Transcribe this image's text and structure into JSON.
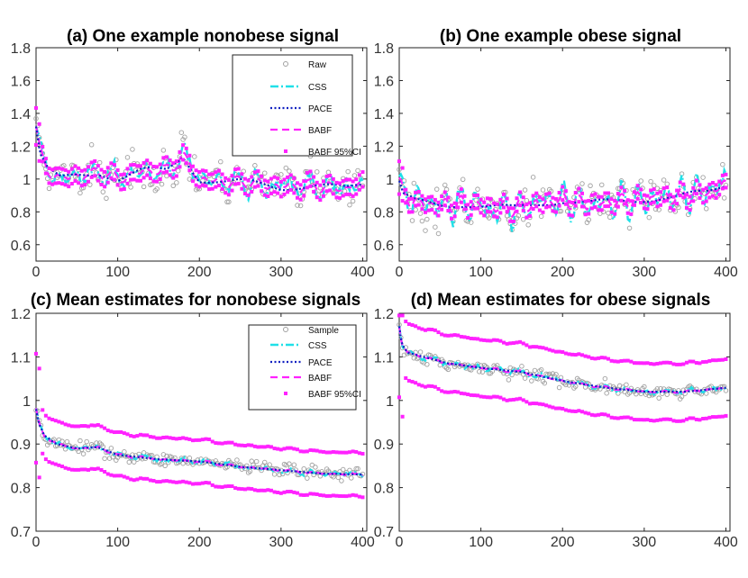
{
  "colors": {
    "raw": "#a0a0a0",
    "css": "#20e0e8",
    "pace": "#1020c0",
    "babf": "#ff22ff",
    "ci": "#ff22ff",
    "axis": "#222222"
  },
  "chart_data": [
    {
      "id": "a",
      "type": "line",
      "title": "(a) One example nonobese signal",
      "xlim": [
        0,
        405
      ],
      "ylim": [
        0.5,
        1.8
      ],
      "xticks": [
        0,
        100,
        200,
        300,
        400
      ],
      "xtick_labels": [
        "0",
        "100",
        "200",
        "300",
        "400"
      ],
      "yticks": [
        0.6,
        0.8,
        1.0,
        1.2,
        1.4,
        1.6,
        1.8
      ],
      "ytick_labels": [
        "0.6",
        "0.8",
        "1",
        "1.2",
        "1.4",
        "1.6",
        "1.8"
      ],
      "legend": {
        "position": "top-right",
        "entries": [
          {
            "key": "raw",
            "label": "Raw"
          },
          {
            "key": "css",
            "label": "CSS"
          },
          {
            "key": "pace",
            "label": "PACE"
          },
          {
            "key": "babf",
            "label": "BABF"
          },
          {
            "key": "ci",
            "label": "BABF 95%CI"
          }
        ]
      },
      "trend": [
        [
          0,
          1.32
        ],
        [
          5,
          1.15
        ],
        [
          15,
          1.05
        ],
        [
          30,
          1.0
        ],
        [
          50,
          1.02
        ],
        [
          80,
          1.04
        ],
        [
          100,
          1.0
        ],
        [
          130,
          1.05
        ],
        [
          160,
          1.05
        ],
        [
          180,
          1.14
        ],
        [
          200,
          1.0
        ],
        [
          230,
          0.98
        ],
        [
          260,
          0.98
        ],
        [
          300,
          0.95
        ],
        [
          340,
          0.96
        ],
        [
          380,
          0.94
        ],
        [
          405,
          0.98
        ]
      ],
      "series": {
        "raw": {
          "amp": 0.07,
          "noise": 0.09,
          "period": 11
        },
        "css": {
          "amp": 0.07,
          "noise": 0.03,
          "period": 11
        },
        "pace": {
          "amp": 0.02,
          "noise": 0.0,
          "period": 11
        },
        "babf": {
          "amp": 0.04,
          "noise": 0.005,
          "period": 11
        },
        "ci_offset": 0.045
      }
    },
    {
      "id": "b",
      "type": "line",
      "title": "(b) One example obese signal",
      "xlim": [
        0,
        405
      ],
      "ylim": [
        0.5,
        1.8
      ],
      "xticks": [
        0,
        100,
        200,
        300,
        400
      ],
      "xtick_labels": [
        "0",
        "100",
        "200",
        "300",
        "400"
      ],
      "yticks": [
        0.6,
        0.8,
        1.0,
        1.2,
        1.4,
        1.6,
        1.8
      ],
      "ytick_labels": [
        "0.6",
        "0.8",
        "1",
        "1.2",
        "1.4",
        "1.6",
        "1.8"
      ],
      "trend": [
        [
          0,
          0.98
        ],
        [
          5,
          0.9
        ],
        [
          20,
          0.86
        ],
        [
          50,
          0.84
        ],
        [
          80,
          0.85
        ],
        [
          110,
          0.83
        ],
        [
          140,
          0.82
        ],
        [
          170,
          0.85
        ],
        [
          200,
          0.87
        ],
        [
          230,
          0.85
        ],
        [
          260,
          0.86
        ],
        [
          300,
          0.88
        ],
        [
          340,
          0.89
        ],
        [
          380,
          0.92
        ],
        [
          405,
          0.98
        ]
      ],
      "series": {
        "raw": {
          "amp": 0.08,
          "noise": 0.1,
          "period": 9
        },
        "css": {
          "amp": 0.1,
          "noise": 0.04,
          "period": 9
        },
        "pace": {
          "amp": 0.02,
          "noise": 0.0,
          "period": 9
        },
        "babf": {
          "amp": 0.05,
          "noise": 0.005,
          "period": 9
        },
        "ci_offset": 0.04
      }
    },
    {
      "id": "c",
      "type": "line",
      "title": "(c) Mean estimates for nonobese signals",
      "xlim": [
        0,
        405
      ],
      "ylim": [
        0.7,
        1.2
      ],
      "xticks": [
        0,
        100,
        200,
        300,
        400
      ],
      "xtick_labels": [
        "0",
        "100",
        "200",
        "300",
        "400"
      ],
      "yticks": [
        0.7,
        0.8,
        0.9,
        1.0,
        1.1,
        1.2
      ],
      "ytick_labels": [
        "0.7",
        "0.8",
        "0.9",
        "1",
        "1.1",
        "1.2"
      ],
      "legend": {
        "position": "top-right",
        "entries": [
          {
            "key": "raw",
            "label": "Sample"
          },
          {
            "key": "css",
            "label": "CSS"
          },
          {
            "key": "pace",
            "label": "PACE"
          },
          {
            "key": "babf",
            "label": "BABF"
          },
          {
            "key": "ci",
            "label": "BABF 95%CI"
          }
        ]
      },
      "trend": [
        [
          0,
          0.98
        ],
        [
          3,
          0.95
        ],
        [
          10,
          0.92
        ],
        [
          25,
          0.9
        ],
        [
          50,
          0.89
        ],
        [
          75,
          0.893
        ],
        [
          100,
          0.875
        ],
        [
          150,
          0.865
        ],
        [
          200,
          0.86
        ],
        [
          250,
          0.848
        ],
        [
          300,
          0.84
        ],
        [
          350,
          0.832
        ],
        [
          405,
          0.83
        ]
      ],
      "series": {
        "raw": {
          "amp": 0.005,
          "noise": 0.012,
          "period": 13
        },
        "css": {
          "amp": 0.006,
          "noise": 0.004,
          "period": 13
        },
        "pace": {
          "amp": 0.0,
          "noise": 0.0,
          "period": 13
        },
        "babf": {
          "amp": 0.003,
          "noise": 0.001,
          "period": 13
        },
        "ci_offset": 0.05
      }
    },
    {
      "id": "d",
      "type": "line",
      "title": "(d) Mean estimates for obese signals",
      "xlim": [
        0,
        405
      ],
      "ylim": [
        0.7,
        1.2
      ],
      "xticks": [
        0,
        100,
        200,
        300,
        400
      ],
      "xtick_labels": [
        "0",
        "100",
        "200",
        "300",
        "400"
      ],
      "yticks": [
        0.7,
        0.8,
        0.9,
        1.0,
        1.1,
        1.2
      ],
      "ytick_labels": [
        "0.7",
        "0.8",
        "0.9",
        "1",
        "1.1",
        "1.2"
      ],
      "trend": [
        [
          0,
          1.17
        ],
        [
          3,
          1.13
        ],
        [
          10,
          1.11
        ],
        [
          30,
          1.1
        ],
        [
          60,
          1.085
        ],
        [
          100,
          1.075
        ],
        [
          150,
          1.065
        ],
        [
          200,
          1.045
        ],
        [
          250,
          1.03
        ],
        [
          300,
          1.02
        ],
        [
          350,
          1.02
        ],
        [
          405,
          1.03
        ]
      ],
      "series": {
        "raw": {
          "amp": 0.005,
          "noise": 0.012,
          "period": 13
        },
        "css": {
          "amp": 0.006,
          "noise": 0.004,
          "period": 13
        },
        "pace": {
          "amp": 0.0,
          "noise": 0.0,
          "period": 13
        },
        "babf": {
          "amp": 0.003,
          "noise": 0.001,
          "period": 13
        },
        "ci_offset": 0.065
      }
    }
  ]
}
